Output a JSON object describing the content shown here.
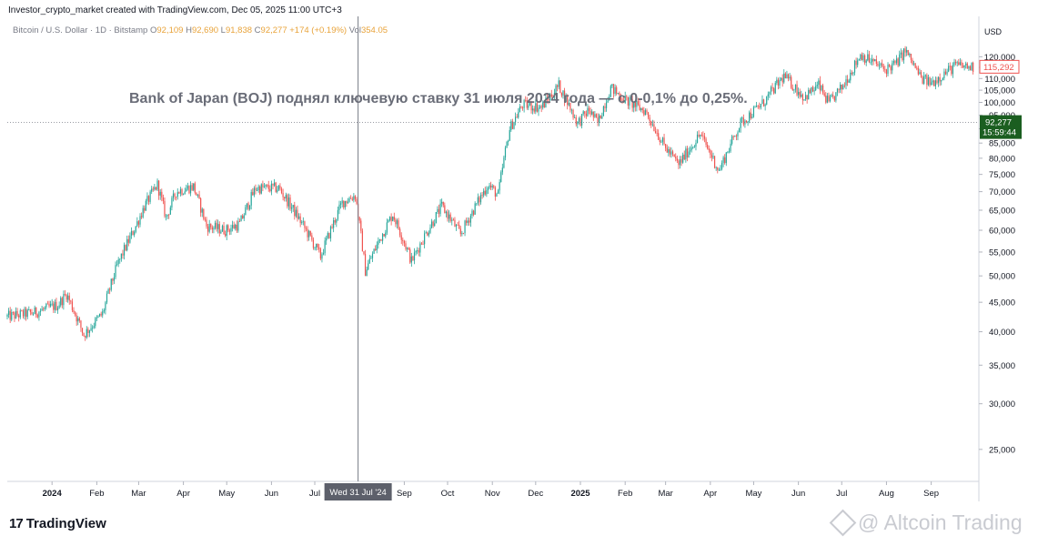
{
  "header": {
    "line": "Investor_crypto_market created with TradingView.com, Dec 05, 2025 11:00 UTC+3"
  },
  "legend": {
    "symbol": "Bitcoin / U.S. Dollar · 1D · Bitstamp",
    "open_label": "O",
    "open": "92,109",
    "high_label": "H",
    "high": "92,690",
    "low_label": "L",
    "low": "91,838",
    "close_label": "C",
    "close": "92,277",
    "change": "+174 (+0.19%)",
    "vol_label": "Vol",
    "vol": "354.05"
  },
  "currency": "USD",
  "annotation": "Bank of Japan (BOJ) поднял ключевую ставку 31 июля 2024 года — с 0-0,1% до 0,25%.",
  "crosshair_label": "Wed 31 Jul '24",
  "price_tags": {
    "last_close": "115,292",
    "current": "92,277",
    "countdown": "15:59:44"
  },
  "colors": {
    "up": "#26a69a",
    "down": "#ef5350",
    "crosshair": "#787b86",
    "current_tag": "#1b5e20",
    "last_close_border": "#ef5350"
  },
  "branding": {
    "logo_mark": "17",
    "logo_text": "TradingView",
    "watermark": "@ Altcoin Trading"
  },
  "chart_data": {
    "type": "candlestick",
    "title": "",
    "ylim": [
      22000,
      141000
    ],
    "y_ticks": [
      25000,
      30000,
      35000,
      40000,
      45000,
      50000,
      55000,
      60000,
      65000,
      70000,
      75000,
      80000,
      85000,
      90000,
      95000,
      100000,
      105000,
      110000,
      115000,
      120000
    ],
    "y_tick_labels": [
      "25,000",
      "30,000",
      "35,000",
      "40,000",
      "45,000",
      "50,000",
      "55,000",
      "60,000",
      "65,000",
      "70,000",
      "75,000",
      "80,000",
      "85,000",
      "90,000",
      "95,000",
      "100,000",
      "105,000",
      "110,000",
      "115,000",
      "120,000"
    ],
    "x_ticks": [
      "2024-01-01",
      "2024-02-01",
      "2024-03-01",
      "2024-04-01",
      "2024-05-01",
      "2024-06-01",
      "2024-07-01",
      "2024-09-01",
      "2024-10-01",
      "2024-11-01",
      "2024-12-01",
      "2025-01-01",
      "2025-02-01",
      "2025-03-01",
      "2025-04-01",
      "2025-05-01",
      "2025-06-01",
      "2025-07-01",
      "2025-08-01",
      "2025-09-01"
    ],
    "x_tick_labels": [
      "2024",
      "Feb",
      "Mar",
      "Apr",
      "May",
      "Jun",
      "Jul",
      "Sep",
      "Oct",
      "Nov",
      "Dec",
      "2025",
      "Feb",
      "Mar",
      "Apr",
      "May",
      "Jun",
      "Jul",
      "Aug",
      "Sep"
    ],
    "x_tick_bold": [
      true,
      false,
      false,
      false,
      false,
      false,
      false,
      false,
      false,
      false,
      false,
      true,
      false,
      false,
      false,
      false,
      false,
      false,
      false,
      false
    ],
    "crosshair_date": "2024-07-31",
    "horizontal_line": 92277,
    "price_path": [
      [
        "2023-12-01",
        42500
      ],
      [
        "2023-12-20",
        43200
      ],
      [
        "2024-01-05",
        44500
      ],
      [
        "2024-01-11",
        46500
      ],
      [
        "2024-01-23",
        39500
      ],
      [
        "2024-02-05",
        43000
      ],
      [
        "2024-02-15",
        52000
      ],
      [
        "2024-02-28",
        61000
      ],
      [
        "2024-03-05",
        66000
      ],
      [
        "2024-03-14",
        72000
      ],
      [
        "2024-03-20",
        63000
      ],
      [
        "2024-03-27",
        70000
      ],
      [
        "2024-04-08",
        71500
      ],
      [
        "2024-04-17",
        61000
      ],
      [
        "2024-04-30",
        60000
      ],
      [
        "2024-05-10",
        61500
      ],
      [
        "2024-05-21",
        71000
      ],
      [
        "2024-06-06",
        71000
      ],
      [
        "2024-06-24",
        60500
      ],
      [
        "2024-07-05",
        54000
      ],
      [
        "2024-07-20",
        67000
      ],
      [
        "2024-07-29",
        69000
      ],
      [
        "2024-08-05",
        51000
      ],
      [
        "2024-08-24",
        64000
      ],
      [
        "2024-09-06",
        53000
      ],
      [
        "2024-09-27",
        66000
      ],
      [
        "2024-10-10",
        59000
      ],
      [
        "2024-10-29",
        72000
      ],
      [
        "2024-11-05",
        69000
      ],
      [
        "2024-11-13",
        90000
      ],
      [
        "2024-11-22",
        99000
      ],
      [
        "2024-12-05",
        98000
      ],
      [
        "2024-12-17",
        107000
      ],
      [
        "2024-12-30",
        92000
      ],
      [
        "2025-01-07",
        97000
      ],
      [
        "2025-01-13",
        92000
      ],
      [
        "2025-01-22",
        106000
      ],
      [
        "2025-02-01",
        101000
      ],
      [
        "2025-02-15",
        96500
      ],
      [
        "2025-02-28",
        84000
      ],
      [
        "2025-03-10",
        78000
      ],
      [
        "2025-03-25",
        88000
      ],
      [
        "2025-04-07",
        76000
      ],
      [
        "2025-04-22",
        92000
      ],
      [
        "2025-05-08",
        100000
      ],
      [
        "2025-05-22",
        111000
      ],
      [
        "2025-06-05",
        102000
      ],
      [
        "2025-06-15",
        107000
      ],
      [
        "2025-06-22",
        99500
      ],
      [
        "2025-07-01",
        106000
      ],
      [
        "2025-07-10",
        116000
      ],
      [
        "2025-07-14",
        121000
      ],
      [
        "2025-07-31",
        114000
      ],
      [
        "2025-08-08",
        117000
      ],
      [
        "2025-08-14",
        123000
      ],
      [
        "2025-08-25",
        110000
      ],
      [
        "2025-09-01",
        108000
      ],
      [
        "2025-09-18",
        116000
      ],
      [
        "2025-09-30",
        115000
      ]
    ]
  }
}
